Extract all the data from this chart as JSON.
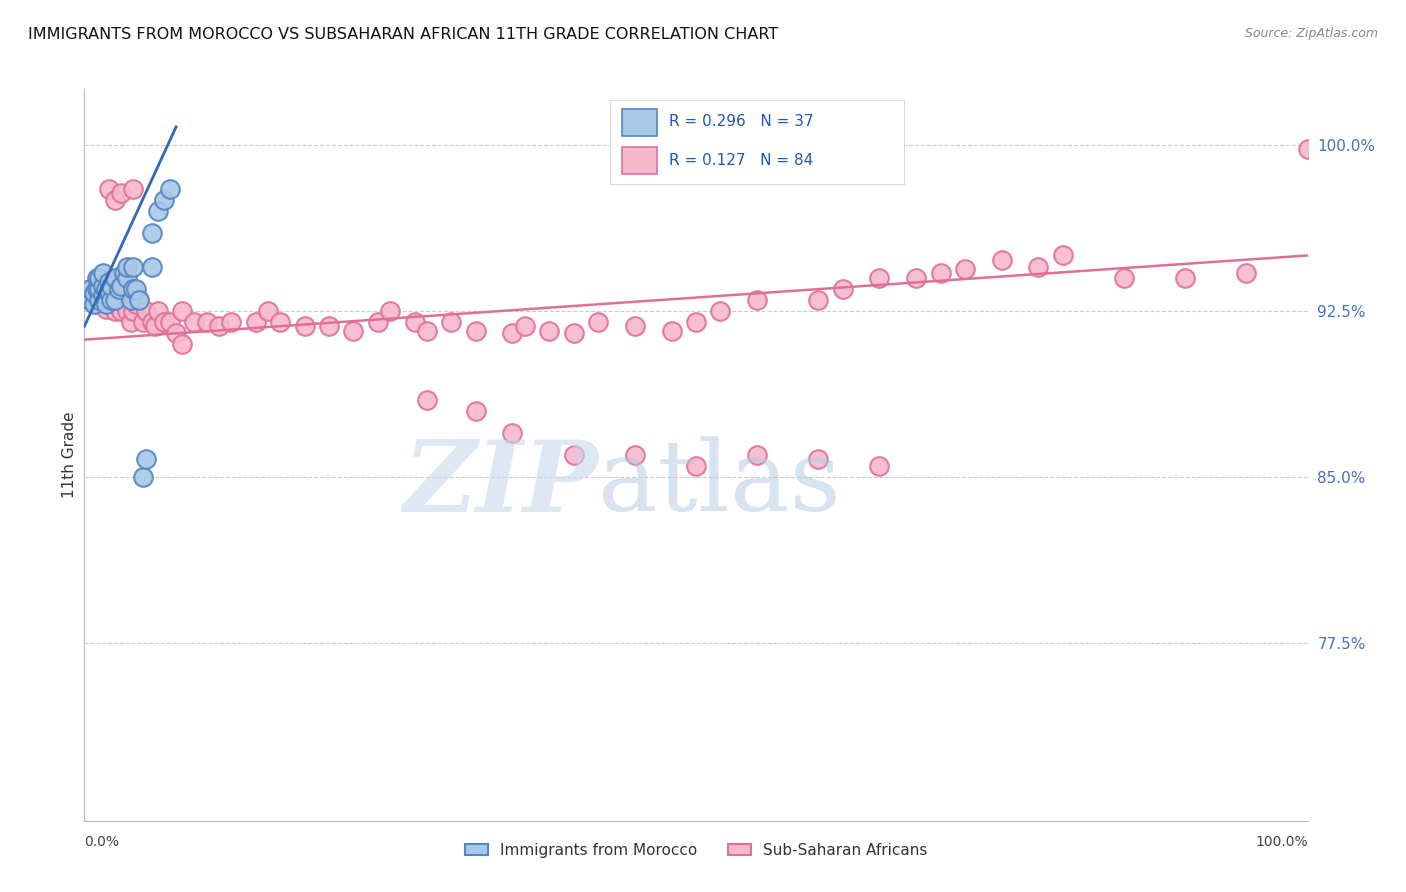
{
  "title": "IMMIGRANTS FROM MOROCCO VS SUBSAHARAN AFRICAN 11TH GRADE CORRELATION CHART",
  "source": "Source: ZipAtlas.com",
  "ylabel": "11th Grade",
  "xlim": [
    0.0,
    1.0
  ],
  "ylim": [
    0.695,
    1.025
  ],
  "yticks": [
    0.775,
    0.85,
    0.925,
    1.0
  ],
  "ytick_labels": [
    "77.5%",
    "85.0%",
    "92.5%",
    "100.0%"
  ],
  "morocco_color": "#a8c8e8",
  "morocco_edge_color": "#5585c0",
  "subsaharan_color": "#f7b8cc",
  "subsaharan_edge_color": "#e0709a",
  "legend_R_morocco": "R = 0.296",
  "legend_N_morocco": "N = 37",
  "legend_R_subsaharan": "R = 0.127",
  "legend_N_subsaharan": "N = 84",
  "blue_line_x": [
    0.0,
    0.075
  ],
  "blue_line_y": [
    0.918,
    1.008
  ],
  "pink_line_x": [
    0.0,
    1.0
  ],
  "pink_line_y": [
    0.912,
    0.95
  ],
  "morocco_x": [
    0.005,
    0.005,
    0.008,
    0.008,
    0.01,
    0.01,
    0.012,
    0.012,
    0.012,
    0.015,
    0.015,
    0.015,
    0.018,
    0.018,
    0.02,
    0.02,
    0.022,
    0.022,
    0.025,
    0.025,
    0.028,
    0.03,
    0.032,
    0.035,
    0.035,
    0.038,
    0.04,
    0.04,
    0.042,
    0.045,
    0.048,
    0.05,
    0.055,
    0.055,
    0.06,
    0.065,
    0.07
  ],
  "morocco_y": [
    0.93,
    0.935,
    0.928,
    0.933,
    0.935,
    0.94,
    0.93,
    0.935,
    0.94,
    0.932,
    0.936,
    0.942,
    0.928,
    0.935,
    0.934,
    0.938,
    0.93,
    0.936,
    0.93,
    0.94,
    0.935,
    0.936,
    0.942,
    0.94,
    0.945,
    0.93,
    0.935,
    0.945,
    0.935,
    0.93,
    0.85,
    0.858,
    0.945,
    0.96,
    0.97,
    0.975,
    0.98
  ],
  "subsaharan_x": [
    0.005,
    0.008,
    0.01,
    0.012,
    0.015,
    0.015,
    0.018,
    0.02,
    0.02,
    0.022,
    0.025,
    0.025,
    0.028,
    0.03,
    0.03,
    0.032,
    0.035,
    0.038,
    0.04,
    0.04,
    0.042,
    0.045,
    0.048,
    0.05,
    0.055,
    0.058,
    0.06,
    0.065,
    0.07,
    0.075,
    0.08,
    0.09,
    0.1,
    0.11,
    0.12,
    0.14,
    0.15,
    0.16,
    0.18,
    0.2,
    0.22,
    0.24,
    0.25,
    0.27,
    0.28,
    0.3,
    0.32,
    0.35,
    0.36,
    0.38,
    0.4,
    0.42,
    0.45,
    0.48,
    0.5,
    0.52,
    0.55,
    0.6,
    0.62,
    0.65,
    0.68,
    0.7,
    0.72,
    0.75,
    0.78,
    0.8,
    0.85,
    0.9,
    0.95,
    1.0,
    0.02,
    0.025,
    0.03,
    0.04,
    0.08,
    0.35,
    0.4,
    0.28,
    0.32,
    0.45,
    0.5,
    0.55,
    0.6,
    0.65
  ],
  "subsaharan_y": [
    0.935,
    0.93,
    0.935,
    0.928,
    0.93,
    0.936,
    0.926,
    0.93,
    0.935,
    0.932,
    0.925,
    0.93,
    0.93,
    0.925,
    0.932,
    0.928,
    0.925,
    0.92,
    0.925,
    0.93,
    0.928,
    0.93,
    0.92,
    0.925,
    0.92,
    0.918,
    0.925,
    0.92,
    0.92,
    0.915,
    0.925,
    0.92,
    0.92,
    0.918,
    0.92,
    0.92,
    0.925,
    0.92,
    0.918,
    0.918,
    0.916,
    0.92,
    0.925,
    0.92,
    0.916,
    0.92,
    0.916,
    0.915,
    0.918,
    0.916,
    0.915,
    0.92,
    0.918,
    0.916,
    0.92,
    0.925,
    0.93,
    0.93,
    0.935,
    0.94,
    0.94,
    0.942,
    0.944,
    0.948,
    0.945,
    0.95,
    0.94,
    0.94,
    0.942,
    0.998,
    0.98,
    0.975,
    0.978,
    0.98,
    0.91,
    0.87,
    0.86,
    0.885,
    0.88,
    0.86,
    0.855,
    0.86,
    0.858,
    0.855
  ]
}
